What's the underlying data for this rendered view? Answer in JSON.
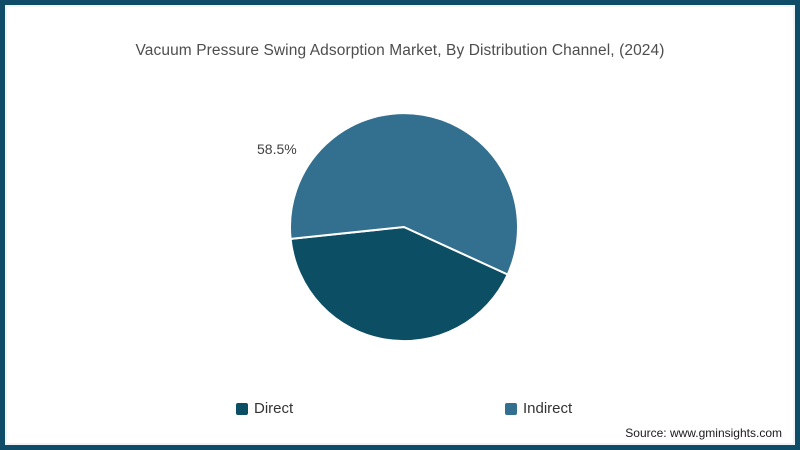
{
  "page": {
    "border_color": "#0f4c67",
    "source_label": "Source: www.gminsights.com"
  },
  "chart_data": {
    "type": "pie",
    "title": "Vacuum Pressure Swing Adsorption Market, By Distribution Channel, (2024)",
    "legend_position": "bottom",
    "start_angle_deg": 186,
    "separator_color": "#ffffff",
    "slices": [
      {
        "label": "Direct",
        "value": 41.5,
        "color": "#0c4e64",
        "data_label": ""
      },
      {
        "label": "Indirect",
        "value": 58.5,
        "color": "#336f8f",
        "data_label": "58.5%"
      }
    ]
  }
}
